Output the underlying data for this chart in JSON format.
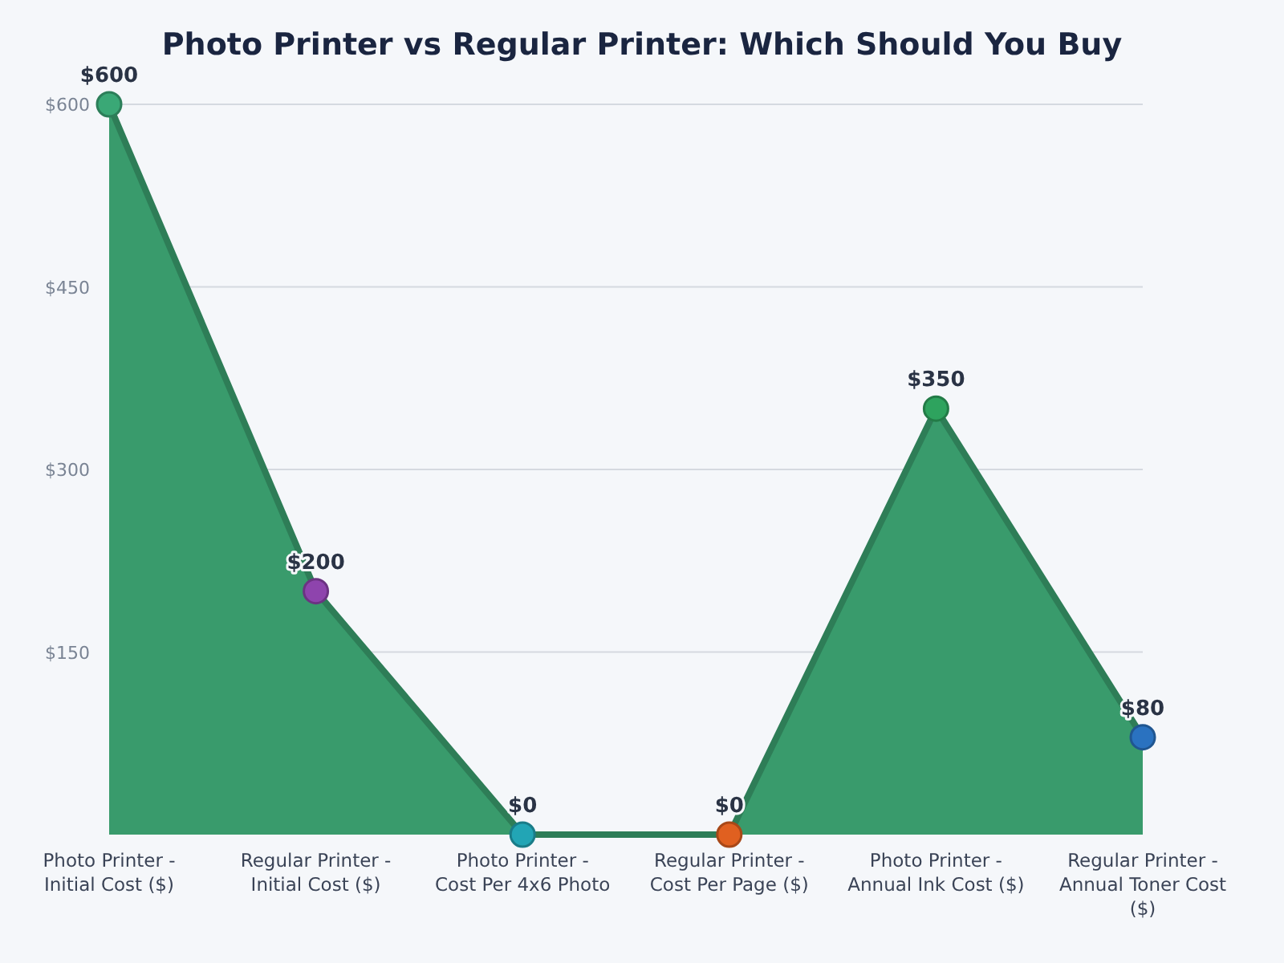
{
  "chart_data": {
    "type": "area",
    "title": "Photo Printer vs Regular Printer: Which Should You Buy",
    "categories": [
      "Photo Printer - Initial Cost ($)",
      "Regular Printer - Initial Cost ($)",
      "Photo Printer - Cost Per 4x6 Photo",
      "Regular Printer - Cost Per Page ($)",
      "Photo Printer - Annual Ink Cost ($)",
      "Regular Printer - Annual Toner Cost ($)"
    ],
    "series": [
      {
        "color": "#2e7d57",
        "values": [
          600,
          200,
          0,
          0,
          350,
          80
        ],
        "colors": [
          "#3aa876",
          "#8e44ad",
          "#22a5b5",
          "#e06020",
          "#2ea35e",
          "#2a72c0"
        ],
        "value_labels": [
          "$600",
          "$200",
          "$0",
          "$0",
          "$350",
          "$80"
        ]
      }
    ],
    "ylim": [
      0,
      600
    ],
    "yticks": [
      {
        "value": 150,
        "label": "$150"
      },
      {
        "value": 300,
        "label": "$300"
      },
      {
        "value": 450,
        "label": "$450"
      },
      {
        "value": 600,
        "label": "$600"
      }
    ],
    "grid": "y",
    "marker": "circle"
  }
}
